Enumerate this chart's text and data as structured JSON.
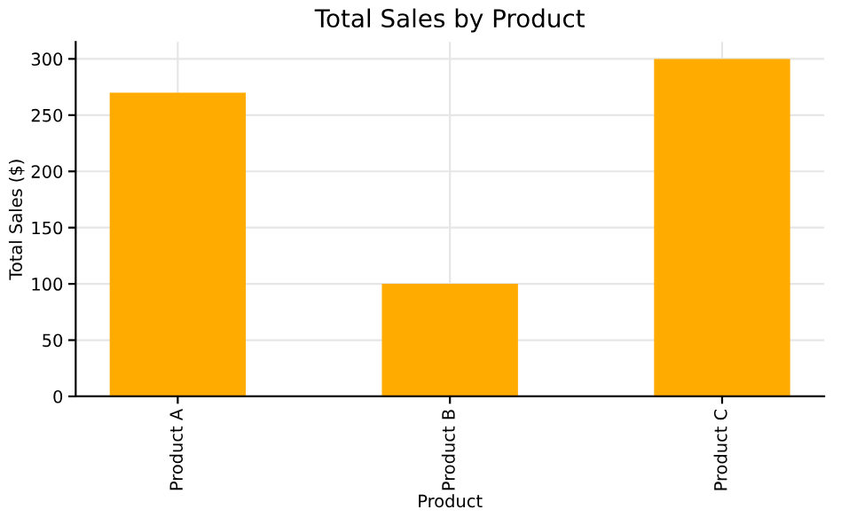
{
  "chart_data": {
    "type": "bar",
    "title": "Total Sales by Product",
    "xlabel": "Product",
    "ylabel": "Total Sales ($)",
    "categories": [
      "Product A",
      "Product B",
      "Product C"
    ],
    "values": [
      270,
      100,
      300
    ],
    "color": "#ffab00",
    "ylim": [
      0,
      315
    ],
    "yticks": [
      0,
      50,
      100,
      150,
      200,
      250,
      300
    ],
    "grid": true
  }
}
